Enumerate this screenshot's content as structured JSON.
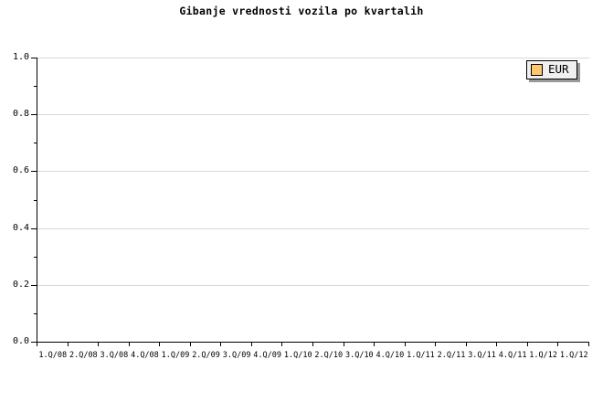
{
  "title": "Gibanje vrednosti vozila po kvartalih",
  "legend": {
    "items": [
      {
        "label": "EUR",
        "swatch_color": "#FFC870"
      }
    ],
    "background": "#F0F0F0",
    "border_color": "#000000",
    "shadow_color": "#999999"
  },
  "axes": {
    "y_tick_labels": [
      "1.0",
      "0.8",
      "0.6",
      "0.4",
      "0.2",
      "0.0"
    ],
    "x_tick_labels": [
      "1.Q/08",
      "2.Q/08",
      "3.Q/08",
      "4.Q/08",
      "1.Q/09",
      "2.Q/09",
      "3.Q/09",
      "4.Q/09",
      "1.Q/10",
      "2.Q/10",
      "3.Q/10",
      "4.Q/10",
      "1.Q/11",
      "2.Q/11",
      "3.Q/11",
      "4.Q/11",
      "1.Q/12",
      "1.Q/12"
    ]
  },
  "colors": {
    "background": "#FFFFFF",
    "axis_line": "#000000",
    "grid_line": "#D8D8D8",
    "text": "#000000"
  },
  "chart_data": {
    "type": "line",
    "title": "Gibanje vrednosti vozila po kvartalih",
    "xlabel": "",
    "ylabel": "",
    "categories": [
      "1.Q/08",
      "2.Q/08",
      "3.Q/08",
      "4.Q/08",
      "1.Q/09",
      "2.Q/09",
      "3.Q/09",
      "4.Q/09",
      "1.Q/10",
      "2.Q/10",
      "3.Q/10",
      "4.Q/10",
      "1.Q/11",
      "2.Q/11",
      "3.Q/11",
      "4.Q/11",
      "1.Q/12",
      "1.Q/12"
    ],
    "series": [
      {
        "name": "EUR",
        "color": "#FFC870",
        "values": []
      }
    ],
    "ylim": [
      0.0,
      1.0
    ],
    "y_major_step": 0.2,
    "y_minor_step": 0.1,
    "grid": "horizontal-major-only",
    "legend_position": "top-right-inside",
    "plot_area_empty": true
  }
}
